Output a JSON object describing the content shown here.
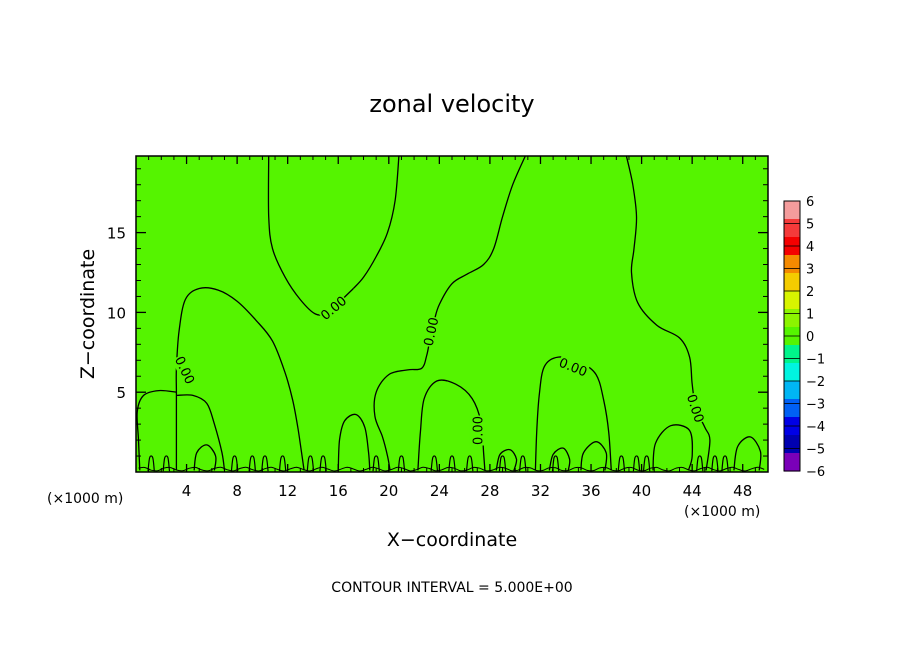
{
  "chart_data": {
    "type": "heatmap",
    "title": "zonal velocity",
    "xlabel": "X−coordinate",
    "ylabel": "Z−coordinate",
    "x_unit": "(×1000 m)",
    "z_unit": "(×1000 m)",
    "xlim": [
      0,
      50
    ],
    "ylim": [
      0,
      19.8
    ],
    "x_ticks": [
      4,
      8,
      12,
      16,
      20,
      24,
      28,
      32,
      36,
      40,
      44,
      48
    ],
    "x_tick_labels": [
      "4",
      "8",
      "12",
      "16",
      "20",
      "24",
      "28",
      "32",
      "36",
      "40",
      "44",
      "48"
    ],
    "y_ticks": [
      5,
      10,
      15
    ],
    "y_tick_labels": [
      "5",
      "10",
      "15"
    ],
    "field_value": 0,
    "field_color": "#55f400",
    "contour_interval_text": "CONTOUR INTERVAL = 5.000E+00",
    "contour_label_text": "0.00",
    "contour_labels": [
      {
        "x": 15.6,
        "z": 10.3,
        "angle": -40
      },
      {
        "x": 23.3,
        "z": 8.8,
        "angle": -78
      },
      {
        "x": 3.9,
        "z": 6.4,
        "angle": 65
      },
      {
        "x": 34.6,
        "z": 6.6,
        "angle": 22
      },
      {
        "x": 44.3,
        "z": 4.0,
        "angle": 72
      },
      {
        "x": 27.0,
        "z": 2.6,
        "angle": -90
      }
    ],
    "contours": [
      [
        [
          10.5,
          19.8
        ],
        [
          10.5,
          16
        ],
        [
          10.8,
          14
        ],
        [
          11.8,
          12.2
        ],
        [
          13,
          10.8
        ],
        [
          14.2,
          9.9
        ],
        [
          15.2,
          10
        ],
        [
          16.3,
          10.8
        ],
        [
          17.2,
          11.5
        ]
      ],
      [
        [
          20.8,
          19.8
        ],
        [
          20.5,
          17
        ],
        [
          19.9,
          15
        ],
        [
          19.0,
          13.5
        ],
        [
          18.0,
          12.2
        ],
        [
          17.2,
          11.5
        ]
      ],
      [
        [
          30.8,
          19.8
        ],
        [
          29.8,
          18
        ],
        [
          29.0,
          16
        ],
        [
          28.3,
          14
        ],
        [
          27.5,
          13
        ],
        [
          26.2,
          12.4
        ],
        [
          25.0,
          11.8
        ],
        [
          24.0,
          10.5
        ],
        [
          23.6,
          9.5
        ],
        [
          23.3,
          8.5
        ],
        [
          23.0,
          7.3
        ],
        [
          22.6,
          6.5
        ],
        [
          21.5,
          6.4
        ],
        [
          20.0,
          6.1
        ],
        [
          19.0,
          5.0
        ],
        [
          18.9,
          3.5
        ],
        [
          19.5,
          2.2
        ],
        [
          19.9,
          1.0
        ],
        [
          20.1,
          0.1
        ]
      ],
      [
        [
          38.8,
          19.8
        ],
        [
          39.3,
          18
        ],
        [
          39.6,
          16
        ],
        [
          39.4,
          14
        ],
        [
          39.2,
          12.5
        ],
        [
          39.7,
          10.6
        ],
        [
          41.2,
          9.2
        ],
        [
          43.0,
          8.4
        ],
        [
          43.8,
          7.2
        ],
        [
          44.0,
          5.5
        ],
        [
          44.3,
          4.0
        ],
        [
          45.0,
          2.8
        ],
        [
          45.4,
          2.0
        ],
        [
          45.1,
          0.1
        ]
      ],
      [
        [
          3.2,
          0.1
        ],
        [
          3.2,
          3
        ],
        [
          3.2,
          5
        ],
        [
          3.2,
          6.5
        ],
        [
          3.4,
          8.8
        ],
        [
          3.9,
          10.8
        ],
        [
          5.0,
          11.5
        ],
        [
          6.5,
          11.4
        ],
        [
          8.0,
          10.7
        ],
        [
          9.5,
          9.5
        ],
        [
          10.8,
          8.2
        ],
        [
          11.8,
          6.2
        ],
        [
          12.4,
          4.5
        ],
        [
          12.8,
          2.8
        ],
        [
          13.1,
          1.2
        ],
        [
          13.3,
          0.1
        ]
      ],
      [
        [
          3.2,
          5.0
        ],
        [
          1.8,
          5.1
        ],
        [
          0.6,
          4.8
        ],
        [
          0.1,
          3.8
        ],
        [
          0.2,
          2
        ],
        [
          0.3,
          0.1
        ]
      ],
      [
        [
          3.2,
          4.8
        ],
        [
          4.5,
          4.8
        ],
        [
          5.6,
          4.3
        ],
        [
          6.2,
          3.0
        ],
        [
          6.8,
          1.2
        ],
        [
          7.0,
          0.1
        ]
      ],
      [
        [
          22.3,
          0.1
        ],
        [
          22.5,
          2.5
        ],
        [
          22.8,
          4.6
        ],
        [
          23.8,
          5.7
        ],
        [
          25.3,
          5.5
        ],
        [
          26.6,
          4.6
        ],
        [
          27.3,
          3.1
        ],
        [
          27.5,
          1.2
        ],
        [
          27.6,
          0.1
        ]
      ],
      [
        [
          31.6,
          0.1
        ],
        [
          31.7,
          2.5
        ],
        [
          31.9,
          4.8
        ],
        [
          32.3,
          6.6
        ],
        [
          33.4,
          7.2
        ],
        [
          35.1,
          6.9
        ],
        [
          36.4,
          6.1
        ],
        [
          37.0,
          4.5
        ],
        [
          37.4,
          2.5
        ],
        [
          37.6,
          0.1
        ]
      ],
      [
        [
          16.0,
          0.1
        ],
        [
          16.1,
          2.0
        ],
        [
          16.5,
          3.2
        ],
        [
          17.4,
          3.6
        ],
        [
          18.1,
          2.8
        ],
        [
          18.4,
          1.2
        ],
        [
          18.5,
          0.1
        ]
      ]
    ],
    "small_contours": [
      [
        [
          4.6,
          0.1
        ],
        [
          4.8,
          1.2
        ],
        [
          5.6,
          1.7
        ],
        [
          6.3,
          1.0
        ],
        [
          6.2,
          0.1
        ]
      ],
      [
        [
          35.2,
          0.1
        ],
        [
          35.4,
          1.2
        ],
        [
          36.4,
          1.9
        ],
        [
          37.2,
          1.2
        ],
        [
          37.1,
          0.1
        ]
      ],
      [
        [
          40.9,
          0.1
        ],
        [
          41.1,
          1.8
        ],
        [
          42.3,
          2.9
        ],
        [
          43.8,
          2.6
        ],
        [
          44.0,
          1.0
        ],
        [
          43.7,
          0.1
        ]
      ],
      [
        [
          47.3,
          0.1
        ],
        [
          47.6,
          1.6
        ],
        [
          48.6,
          2.2
        ],
        [
          49.4,
          1.3
        ],
        [
          49.3,
          0.1
        ]
      ],
      [
        [
          32.7,
          0.1
        ],
        [
          33.0,
          1.1
        ],
        [
          33.8,
          1.5
        ],
        [
          34.3,
          0.8
        ],
        [
          34.2,
          0.1
        ]
      ],
      [
        [
          28.5,
          0.1
        ],
        [
          28.8,
          1.1
        ],
        [
          29.6,
          1.4
        ],
        [
          30.1,
          0.8
        ],
        [
          29.9,
          0.1
        ]
      ]
    ],
    "bumps_x": [
      1.2,
      2.4,
      7.8,
      9.2,
      10.2,
      11.6,
      13.8,
      14.8,
      19.0,
      21.0,
      23.6,
      25.0,
      26.4,
      29.0,
      30.6,
      33.2,
      38.4,
      39.6,
      40.4,
      44.6,
      45.8,
      46.6
    ],
    "colorbar": {
      "min": -6,
      "max": 6,
      "ticks": [
        6,
        5,
        4,
        3,
        2,
        1,
        0,
        -1,
        -2,
        -3,
        -4,
        -5,
        -6
      ],
      "tick_labels": [
        "6",
        "5",
        "4",
        "3",
        "2",
        "1",
        "0",
        "−1",
        "−2",
        "−3",
        "−4",
        "−5",
        "−6"
      ],
      "colors": [
        "#f49c9c",
        "#f43a3a",
        "#f40000",
        "#f48a00",
        "#f4cc00",
        "#d8f400",
        "#8cf400",
        "#55f400",
        "#00f48a",
        "#00f4e0",
        "#00b6f4",
        "#0060f4",
        "#0000e6",
        "#0000b0",
        "#7a00b8"
      ]
    }
  }
}
